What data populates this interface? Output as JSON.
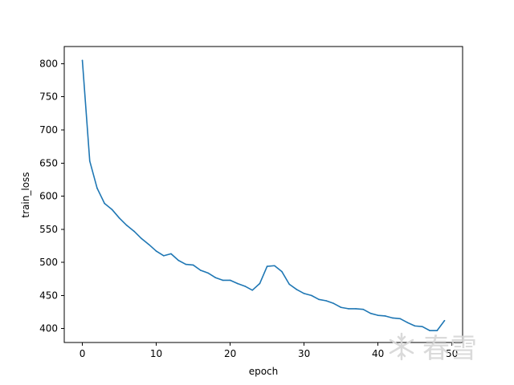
{
  "chart_data": {
    "type": "line",
    "title": "",
    "xlabel": "epoch",
    "ylabel": "train_loss",
    "xlim": [
      -2.45,
      51.45
    ],
    "ylim": [
      379,
      826
    ],
    "xticks": [
      0,
      10,
      20,
      30,
      40,
      50
    ],
    "yticks": [
      400,
      450,
      500,
      550,
      600,
      650,
      700,
      750,
      800
    ],
    "grid": false,
    "legend": "none",
    "series": [
      {
        "color": "#1f77b4",
        "x": [
          0,
          1,
          2,
          3,
          4,
          5,
          6,
          7,
          8,
          9,
          10,
          11,
          12,
          13,
          14,
          15,
          16,
          17,
          18,
          19,
          20,
          21,
          22,
          23,
          24,
          25,
          26,
          27,
          28,
          29,
          30,
          31,
          32,
          33,
          34,
          35,
          36,
          37,
          38,
          39,
          40,
          41,
          42,
          43,
          44,
          45,
          46,
          47,
          48,
          49
        ],
        "y": [
          805,
          653,
          612,
          589,
          580,
          567,
          556,
          547,
          536,
          527,
          517,
          510,
          513,
          503,
          497,
          496,
          488,
          484,
          477,
          473,
          473,
          468,
          464,
          458,
          468,
          494,
          495,
          486,
          467,
          459,
          453,
          450,
          444,
          442,
          438,
          432,
          430,
          430,
          429,
          423,
          420,
          419,
          416,
          415,
          409,
          404,
          403,
          397,
          397,
          412
        ]
      }
    ]
  },
  "watermark": {
    "text": "春雪",
    "icon": "snowflake-icon"
  }
}
